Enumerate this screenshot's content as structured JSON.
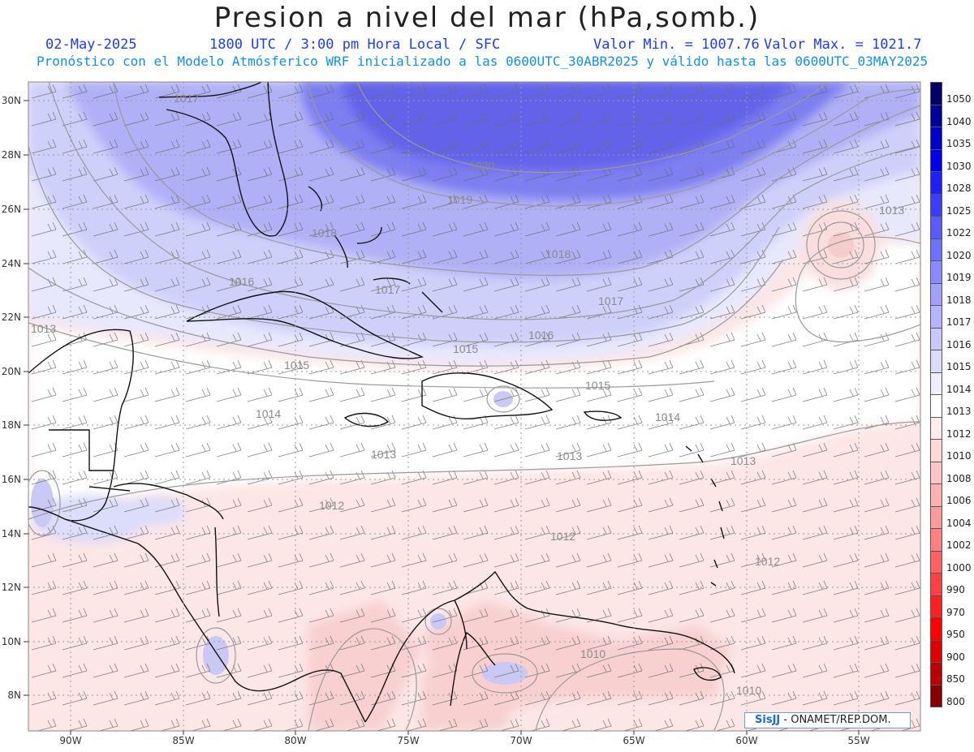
{
  "header": {
    "title": "Presion a nivel del mar (hPa,somb.)",
    "date": "02-May-2025",
    "time_info": "1800 UTC / 3:00 pm Hora Local / SFC",
    "valor_min": "Valor Min. = 1007.76",
    "valor_max": "Valor Max. = 1021.7",
    "forecast_info": "Pronóstico con el Modelo Atmósferico WRF inicializado a las 0600UTC_30ABR2025 y válido hasta las  0600UTC_03MAY2025"
  },
  "axes": {
    "lat_labels": [
      "30N",
      "28N",
      "26N",
      "24N",
      "22N",
      "20N",
      "18N",
      "16N",
      "14N",
      "12N",
      "10N",
      "8N"
    ],
    "lon_labels": [
      "90W",
      "85W",
      "80W",
      "75W",
      "70W",
      "65W",
      "60W",
      "55W"
    ]
  },
  "isobar_labels": [
    "1017",
    "1020",
    "1019",
    "1018",
    "1018",
    "1017",
    "1016",
    "1017",
    "1016",
    "1013",
    "1015",
    "1015",
    "1014",
    "1015",
    "1014",
    "1013",
    "1013",
    "1013",
    "1013",
    "1012",
    "1012",
    "1012",
    "1010",
    "1010"
  ],
  "colorbar": {
    "levels": [
      "1050",
      "1040",
      "1035",
      "1030",
      "1028",
      "1025",
      "1022",
      "1020",
      "1019",
      "1018",
      "1017",
      "1016",
      "1015",
      "1014",
      "1013",
      "1012",
      "1010",
      "1008",
      "1006",
      "1004",
      "1002",
      "1000",
      "990",
      "970",
      "950",
      "900",
      "850",
      "800"
    ],
    "colors": [
      "#000066",
      "#000099",
      "#0000cc",
      "#0000ee",
      "#1e1eff",
      "#3c3cff",
      "#5a5aff",
      "#7070ff",
      "#8a8aff",
      "#a0a0ff",
      "#b4b4ff",
      "#c8c8ff",
      "#dcdcff",
      "#eeeeff",
      "#ffffff",
      "#ffecec",
      "#ffd8d8",
      "#ffc4c4",
      "#ffb0b0",
      "#ff9a9a",
      "#ff8080",
      "#ff6060",
      "#ff4040",
      "#ff2020",
      "#ff0000",
      "#dd0000",
      "#bb0000",
      "#880000"
    ]
  },
  "credit": {
    "logo": "Sis",
    "logo2": "JJ",
    "text": " - ONAMET/REP.DOM."
  }
}
